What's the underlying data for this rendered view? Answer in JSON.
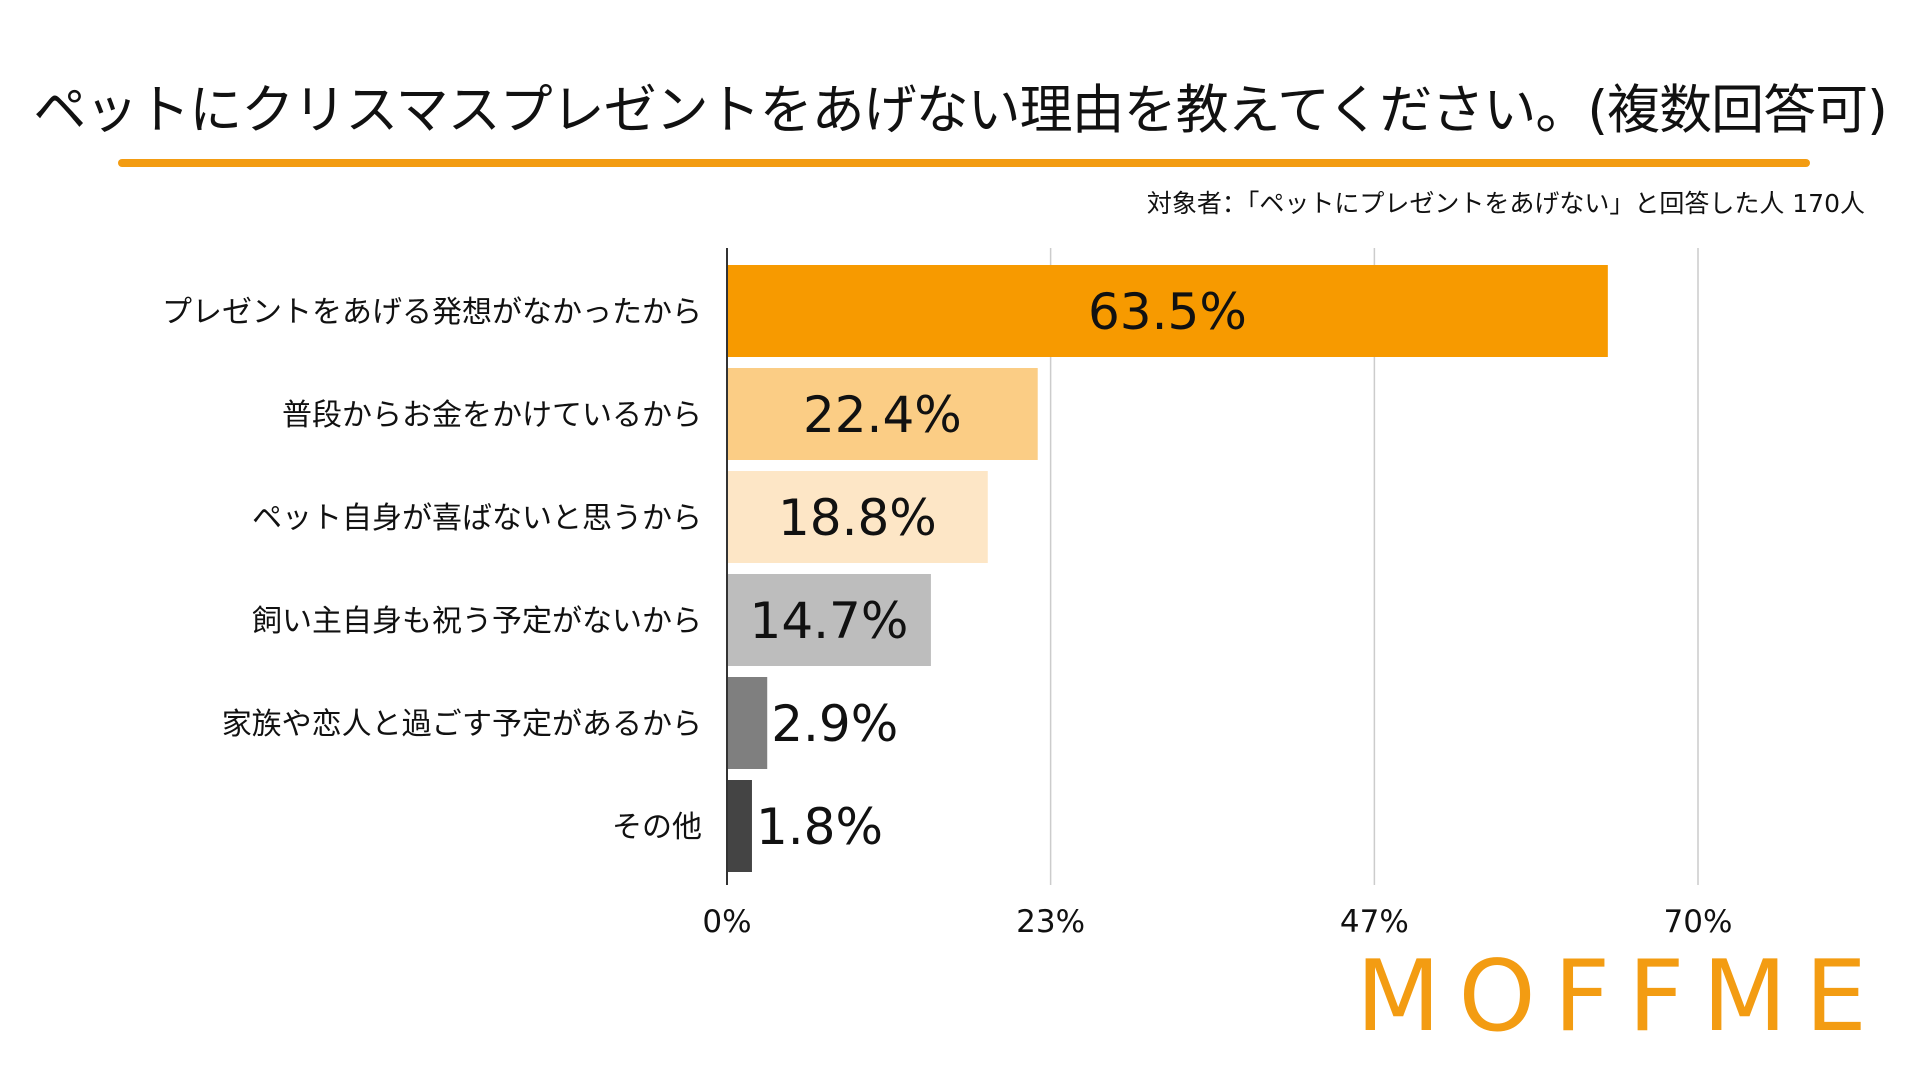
{
  "header": {
    "title": "ペットにクリスマスプレゼントをあげない理由を教えてください。(複数回答可)",
    "subtitle": "対象者：「ペットにプレゼントをあげない」と回答した人 170人"
  },
  "colors": {
    "accent": "#f39c12",
    "bars": [
      "#f79a00",
      "#fbcd85",
      "#fde6c6",
      "#bdbdbd",
      "#7f7f7f",
      "#444444"
    ]
  },
  "chart_data": {
    "type": "bar",
    "orientation": "horizontal",
    "categories": [
      "プレゼントをあげる発想がなかったから",
      "普段からお金をかけているから",
      "ペット自身が喜ばないと思うから",
      "飼い主自身も祝う予定がないから",
      "家族や恋人と過ごす予定があるから",
      "その他"
    ],
    "values": [
      63.5,
      22.4,
      18.8,
      14.7,
      2.9,
      1.8
    ],
    "data_labels": [
      "63.5%",
      "22.4%",
      "18.8%",
      "14.7%",
      "2.9%",
      "1.8%"
    ],
    "xlim": [
      0,
      70
    ],
    "ticks": [
      0,
      23.33,
      46.67,
      70
    ],
    "tick_labels": [
      "0%",
      "23%",
      "47%",
      "70%"
    ],
    "grid": true,
    "legend": "none"
  },
  "logo": {
    "text": "MOFFME"
  }
}
